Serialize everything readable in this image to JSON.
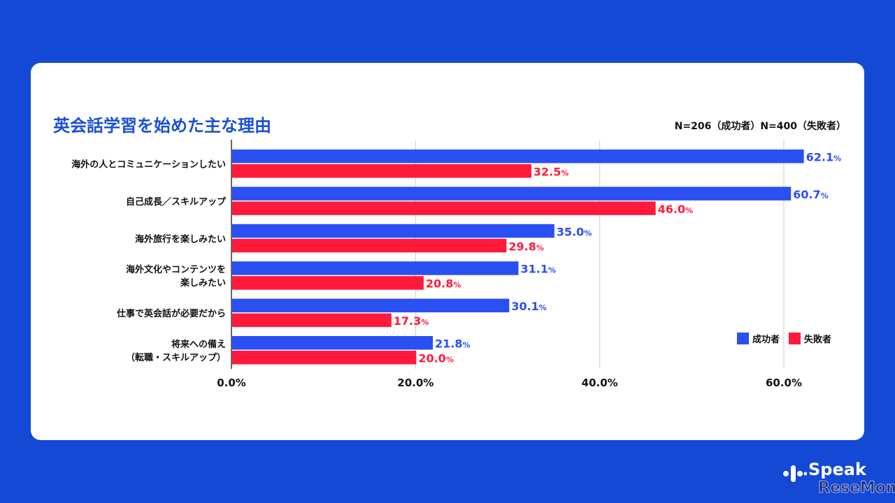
{
  "header": {
    "title": "英会話学習を始めた主な理由",
    "sample_note": "N=206（成功者）N=400（失敗者）"
  },
  "logo": {
    "speak": "Speak",
    "resemom": "ReseMom"
  },
  "colors": {
    "background": "#1449d6",
    "success": "#2a4ff2",
    "failure": "#ff1a3c",
    "title": "#1a4fd6"
  },
  "chart_data": {
    "type": "bar",
    "orientation": "horizontal",
    "categories": [
      [
        "海外の人とコミュニケーションしたい"
      ],
      [
        "自己成長／スキルアップ"
      ],
      [
        "海外旅行を楽しみたい"
      ],
      [
        "海外文化やコンテンツを",
        "楽しみたい"
      ],
      [
        "仕事で英会話が必要だから"
      ],
      [
        "将来への備え",
        "（転職・スキルアップ）"
      ]
    ],
    "series": [
      {
        "name": "成功者",
        "color": "#2a4ff2",
        "values": [
          62.1,
          60.7,
          35.0,
          31.1,
          30.1,
          21.8
        ]
      },
      {
        "name": "失敗者",
        "color": "#ff1a3c",
        "values": [
          32.5,
          46.0,
          29.8,
          20.8,
          17.3,
          20.0
        ]
      }
    ],
    "xlim": [
      0,
      65
    ],
    "xticks": [
      0,
      20,
      40,
      60
    ],
    "xtick_labels": [
      "0.0%",
      "20.0%",
      "40.0%",
      "60.0%"
    ],
    "value_suffix": "%",
    "grid": true,
    "legend": "right"
  }
}
